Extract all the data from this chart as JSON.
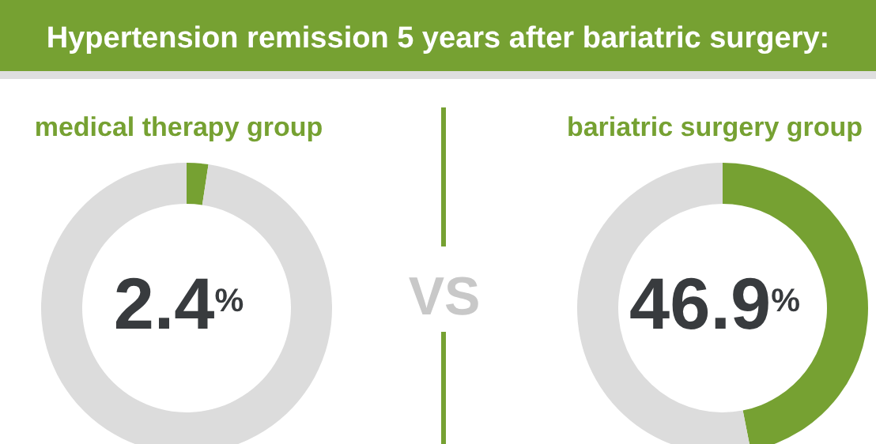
{
  "chart_data": [
    {
      "type": "other",
      "title": "Hypertension remission 5 years after bariatric surgery:",
      "annotations": [
        "VS"
      ]
    },
    {
      "type": "donut",
      "title": "medical therapy group",
      "categories": [
        null,
        null
      ],
      "values": [
        2.4,
        97.6
      ],
      "colors": [
        "#76a132",
        "#dcdcdc"
      ],
      "annotations": [
        "2.4$^{%}$"
      ]
    },
    {
      "type": "donut",
      "title": "bariatric surgery group",
      "categories": [
        null,
        null
      ],
      "values": [
        46.9,
        53.1
      ],
      "colors": [
        "#76a132",
        "#dcdcdc"
      ],
      "annotations": [
        "46.9$^{%}$"
      ]
    }
  ]
}
